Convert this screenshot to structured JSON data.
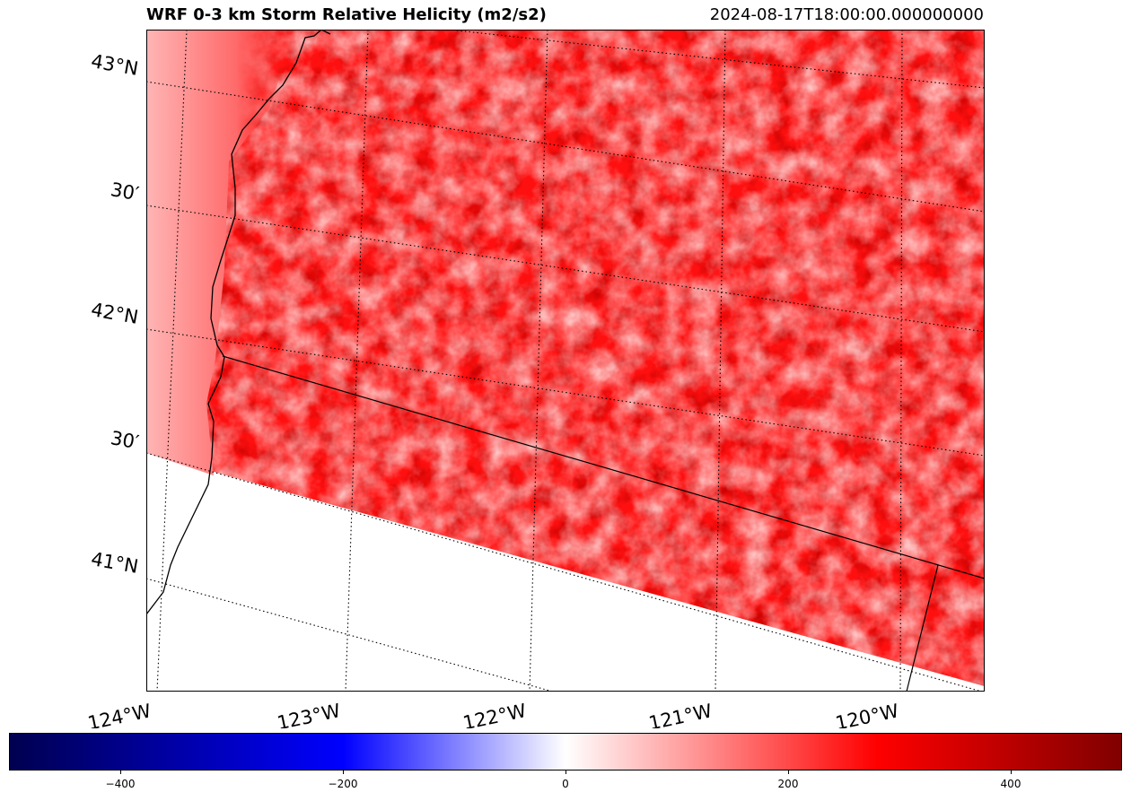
{
  "title": {
    "left": "WRF 0-3 km Storm Relative Helicity (m2/s2)",
    "right": "2024-08-17T18:00:00.000000000"
  },
  "map": {
    "latitude_labels": [
      "43°N",
      "30′",
      "42°N",
      "30′",
      "41°N"
    ],
    "longitude_labels": [
      "124°W",
      "123°W",
      "122°W",
      "121°W",
      "120°W"
    ],
    "field_color": "#ff0000",
    "field_color_dark": "#c80000",
    "field_color_light": "#ff9a9a"
  },
  "colorbar": {
    "tick_labels": [
      "−400",
      "−200",
      "0",
      "200",
      "400"
    ],
    "tick_values": [
      -400,
      -200,
      0,
      200,
      400
    ],
    "range": [
      -500,
      500
    ],
    "colors": [
      "#000050",
      "#0000ff",
      "#ffffff",
      "#ff0000",
      "#800000"
    ]
  }
}
